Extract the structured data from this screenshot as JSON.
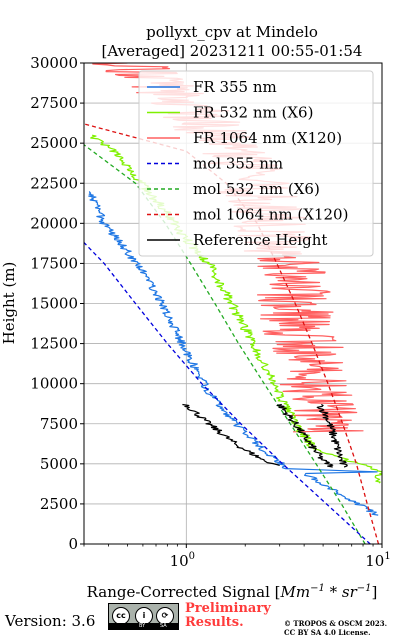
{
  "chart_data": {
    "type": "line",
    "title": "pollyxt_cpv at Mindelo",
    "subtitle": "[Averaged] 20231211 00:55-01:54",
    "xlabel": "Range-Corrected Signal [$Mm^{-1}*sr^{-1}$]",
    "xlabel_text": "Range-Corrected Signal [",
    "xlabel_math": "Mm",
    "xlabel_math_sup": "−1",
    "xlabel_math_mid": " * sr",
    "xlabel_math_sup2": "−1",
    "xlabel_end": "]",
    "ylabel": "Height (m)",
    "xscale": "log",
    "xlim": [
      0.3,
      10
    ],
    "ylim": [
      0,
      30000
    ],
    "grid": true,
    "x_ticks": [
      {
        "value": 1,
        "label": "10",
        "sup": "0"
      },
      {
        "value": 10,
        "label": "10",
        "sup": "1"
      }
    ],
    "y_ticks": [
      {
        "value": 0,
        "label": "0"
      },
      {
        "value": 2500,
        "label": "2500"
      },
      {
        "value": 5000,
        "label": "5000"
      },
      {
        "value": 7500,
        "label": "7500"
      },
      {
        "value": 10000,
        "label": "10000"
      },
      {
        "value": 12500,
        "label": "12500"
      },
      {
        "value": 15000,
        "label": "15000"
      },
      {
        "value": 17500,
        "label": "17500"
      },
      {
        "value": 20000,
        "label": "20000"
      },
      {
        "value": 22500,
        "label": "22500"
      },
      {
        "value": 25000,
        "label": "25000"
      },
      {
        "value": 27500,
        "label": "27500"
      },
      {
        "value": 30000,
        "label": "30000"
      }
    ],
    "legend_position": "top-right",
    "series": [
      {
        "name": "FR 355 nm",
        "color": "#1f77e4",
        "style": "solid",
        "noise": 0.05,
        "points": [
          [
            9.5,
            1800
          ],
          [
            6,
            3200
          ],
          [
            4,
            4400
          ],
          [
            9.5,
            4500
          ],
          [
            3.3,
            4700
          ],
          [
            2.4,
            6000
          ],
          [
            1.8,
            7500
          ],
          [
            1.3,
            9500
          ],
          [
            1.0,
            12000
          ],
          [
            0.75,
            15000
          ],
          [
            0.6,
            17000
          ],
          [
            0.48,
            18500
          ],
          [
            0.38,
            20000
          ],
          [
            0.32,
            22000
          ]
        ]
      },
      {
        "name": "FR 532 nm (X6)",
        "color": "#7ff000",
        "style": "solid",
        "noise": 0.06,
        "points": [
          [
            9.7,
            3800
          ],
          [
            9.8,
            4500
          ],
          [
            4.5,
            6000
          ],
          [
            3.6,
            7500
          ],
          [
            2.8,
            10000
          ],
          [
            2.2,
            12500
          ],
          [
            1.7,
            15000
          ],
          [
            1.3,
            17500
          ],
          [
            1.0,
            19000
          ],
          [
            0.75,
            21000
          ],
          [
            0.55,
            23000
          ],
          [
            0.42,
            24500
          ],
          [
            0.33,
            25500
          ]
        ]
      },
      {
        "name": "FR 1064 nm (X120)",
        "color": "#ff6060",
        "style": "solid",
        "noise": 0.45,
        "points": [
          [
            5.5,
            7000
          ],
          [
            4.5,
            10000
          ],
          [
            4.0,
            12500
          ],
          [
            3.6,
            15000
          ],
          [
            3.2,
            17500
          ],
          [
            2.7,
            20000
          ],
          [
            2.2,
            22500
          ],
          [
            1.6,
            25000
          ],
          [
            1.0,
            27500
          ],
          [
            0.5,
            30000
          ]
        ]
      },
      {
        "name": "mol 355 nm",
        "color": "#0000dd",
        "style": "dashed",
        "points": [
          [
            8.7,
            0
          ],
          [
            5.2,
            2500
          ],
          [
            3.1,
            5000
          ],
          [
            1.9,
            7500
          ],
          [
            1.2,
            10000
          ],
          [
            0.8,
            12500
          ],
          [
            0.55,
            15000
          ],
          [
            0.38,
            17500
          ],
          [
            0.3,
            18800
          ]
        ]
      },
      {
        "name": "mol 532 nm (X6)",
        "color": "#22aa22",
        "style": "dashed",
        "points": [
          [
            8.2,
            0
          ],
          [
            6.2,
            2500
          ],
          [
            4.6,
            5000
          ],
          [
            3.4,
            7500
          ],
          [
            2.5,
            10000
          ],
          [
            1.85,
            12500
          ],
          [
            1.4,
            15000
          ],
          [
            1.05,
            17500
          ],
          [
            0.78,
            20000
          ],
          [
            0.55,
            22500
          ],
          [
            0.3,
            24900
          ]
        ]
      },
      {
        "name": "mol 1064 nm (X120)",
        "color": "#dd1111",
        "style": "dashed",
        "points": [
          [
            9.6,
            0
          ],
          [
            8.4,
            2500
          ],
          [
            7.4,
            5000
          ],
          [
            6.3,
            7500
          ],
          [
            5.3,
            10000
          ],
          [
            4.4,
            12500
          ],
          [
            3.6,
            15000
          ],
          [
            2.9,
            17500
          ],
          [
            2.3,
            20000
          ],
          [
            1.6,
            22500
          ],
          [
            1.0,
            24500
          ],
          [
            0.3,
            26200
          ]
        ]
      },
      {
        "name": "Reference Height",
        "color": "#000000",
        "style": "solid",
        "noise": 0.05,
        "segments": [
          [
            [
              1.0,
              8700
            ],
            [
              1.3,
              7500
            ],
            [
              1.8,
              6200
            ],
            [
              2.5,
              5200
            ],
            [
              3.0,
              4900
            ]
          ],
          [
            [
              3.0,
              8700
            ],
            [
              3.6,
              7500
            ],
            [
              4.3,
              6200
            ],
            [
              5.0,
              5200
            ],
            [
              5.6,
              4800
            ]
          ],
          [
            [
              4.8,
              8700
            ],
            [
              5.2,
              8000
            ],
            [
              5.5,
              7200
            ],
            [
              5.9,
              6000
            ],
            [
              6.2,
              5200
            ],
            [
              6.4,
              4800
            ]
          ]
        ]
      }
    ]
  },
  "footer": {
    "version": "Version: 3.6",
    "cc_badge": [
      "cc",
      "BY",
      "SA"
    ],
    "preliminary": [
      "Preliminary",
      "Results."
    ],
    "copyright": [
      "© TROPOS & OSCM 2023.",
      "CC BY SA 4.0 License."
    ]
  }
}
